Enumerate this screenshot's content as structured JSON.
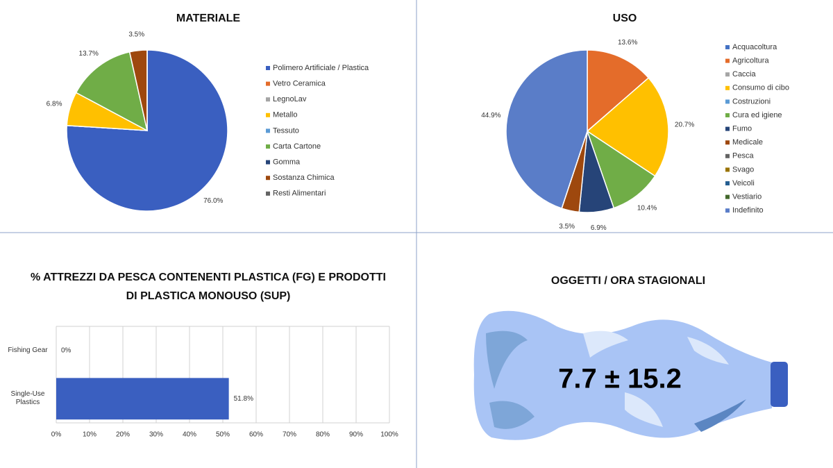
{
  "chart_data": [
    {
      "type": "pie",
      "title": "MATERIALE",
      "categories": [
        "Polimero Artificiale / Plastica",
        "Vetro Ceramica",
        "LegnoLav",
        "Metallo",
        "Tessuto",
        "Carta Cartone",
        "Gomma",
        "Sostanza Chimica",
        "Resti Alimentari"
      ],
      "values": [
        76.0,
        0,
        0,
        6.8,
        0,
        13.7,
        0,
        3.5,
        0
      ],
      "value_labels": [
        "76.0%",
        null,
        null,
        "6.8%",
        null,
        "13.7%",
        null,
        "3.5%",
        null
      ],
      "colors": [
        "#3a5fc0",
        "#e46c2a",
        "#a5a5a5",
        "#ffc000",
        "#5b9bd5",
        "#70ad47",
        "#264478",
        "#9e480e",
        "#636363"
      ]
    },
    {
      "type": "pie",
      "title": "USO",
      "categories": [
        "Acquacoltura",
        "Agricoltura",
        "Caccia",
        "Consumo di cibo",
        "Costruzioni",
        "Cura ed igiene",
        "Fumo",
        "Medicale",
        "Pesca",
        "Svago",
        "Veicoli",
        "Vestiario",
        "Indefinito"
      ],
      "values": [
        0,
        13.6,
        0,
        20.7,
        0,
        10.4,
        6.9,
        3.5,
        0,
        0,
        0,
        0,
        44.9
      ],
      "value_labels": [
        null,
        "13.6%",
        null,
        "20.7%",
        null,
        "10.4%",
        "6.9%",
        "3.5%",
        null,
        null,
        null,
        null,
        "44.9%"
      ],
      "colors": [
        "#4472c4",
        "#e46c2a",
        "#a5a5a5",
        "#ffc000",
        "#5b9bd5",
        "#70ad47",
        "#264478",
        "#9e480e",
        "#636363",
        "#997300",
        "#255e91",
        "#43682b",
        "#5a7dc8"
      ]
    },
    {
      "type": "hbar",
      "title": "% ATTREZZI DA PESCA CONTENENTI PLASTICA (FG) E PRODOTTI DI PLASTICA MONOUSO (SUP)",
      "categories": [
        "Fishing Gear",
        "Single-Use Plastics"
      ],
      "values": [
        0,
        51.8
      ],
      "value_labels": [
        "0%",
        "51.8%"
      ],
      "color": "#3a5fc0",
      "xlim": [
        0,
        100
      ],
      "xticks": [
        {
          "value": 0,
          "label": "0%"
        },
        {
          "value": 10,
          "label": "10%"
        },
        {
          "value": 20,
          "label": "20%"
        },
        {
          "value": 30,
          "label": "30%"
        },
        {
          "value": 40,
          "label": "40%"
        },
        {
          "value": 50,
          "label": "50%"
        },
        {
          "value": 60,
          "label": "60%"
        },
        {
          "value": 70,
          "label": "70%"
        },
        {
          "value": 80,
          "label": "80%"
        },
        {
          "value": 90,
          "label": "90%"
        },
        {
          "value": 100,
          "label": "100%"
        }
      ],
      "grid": true
    }
  ],
  "counter": {
    "title": "OGGETTI / ORA STAGIONALI",
    "value": "7.7 ± 15.2"
  }
}
